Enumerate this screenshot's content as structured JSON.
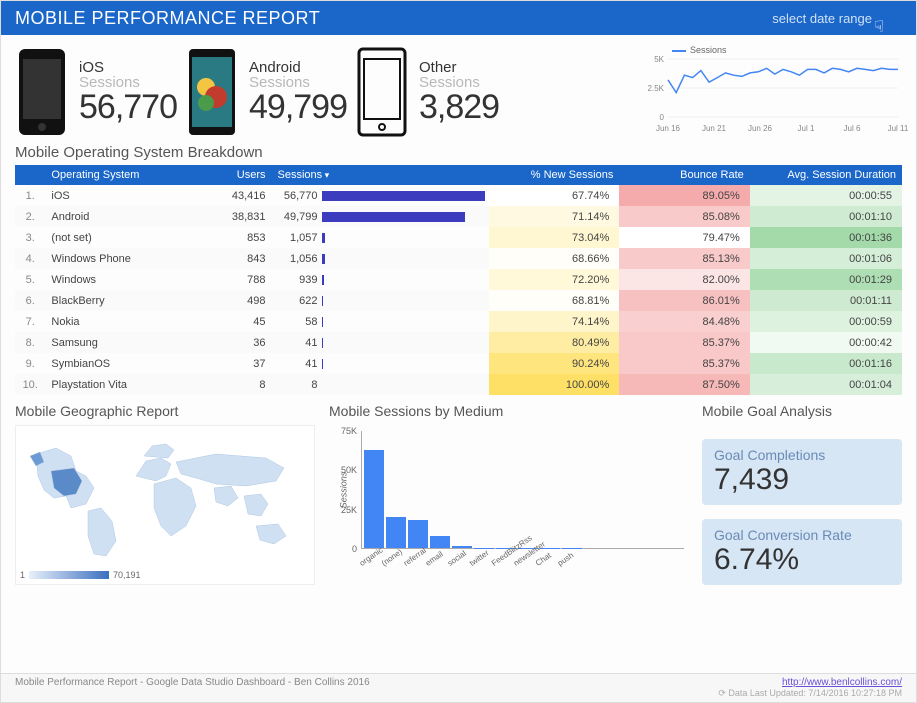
{
  "header": {
    "title": "MOBILE PERFORMANCE REPORT",
    "date_range_label": "select date range"
  },
  "kpis": [
    {
      "platform": "iOS",
      "sub": "Sessions",
      "value": "56,770"
    },
    {
      "platform": "Android",
      "sub": "Sessions",
      "value": "49,799"
    },
    {
      "platform": "Other",
      "sub": "Sessions",
      "value": "3,829"
    }
  ],
  "sparkline": {
    "legend": "Sessions",
    "y_ticks": [
      "5K",
      "2.5K",
      "0"
    ],
    "x_ticks": [
      "Jun 16",
      "Jun 21",
      "Jun 26",
      "Jul 1",
      "Jul 6",
      "Jul 11"
    ],
    "points": [
      3200,
      2100,
      3600,
      3400,
      4000,
      3000,
      3400,
      3800,
      3600,
      3500,
      3800,
      3900,
      4200,
      3700,
      4100,
      3900,
      3600,
      4100,
      4100,
      3800,
      4200,
      4100,
      3900,
      4200,
      4100,
      4000,
      4200,
      4100,
      4100
    ],
    "ylim": [
      0,
      5000
    ],
    "color": "#4285f4"
  },
  "breakdown": {
    "title": "Mobile Operating System Breakdown",
    "columns": [
      "",
      "Operating System",
      "Users",
      "Sessions",
      "% New Sessions",
      "Bounce Rate",
      "Avg. Session Duration"
    ],
    "sessions_max": 56770,
    "cell_colors": {
      "new_sessions": {
        "low": "#ffffff",
        "high": "#ffe066"
      },
      "bounce_rate": {
        "low": "#ffffff",
        "high": "#f4a6a6"
      },
      "duration": {
        "low": "#ffffff",
        "high": "#9fd8a5"
      }
    },
    "rows": [
      {
        "n": "1.",
        "os": "iOS",
        "users": "43,416",
        "sessions": "56,770",
        "sessions_v": 56770,
        "pct_new": "67.74%",
        "pct_new_w": 0.0,
        "bounce": "89.05%",
        "bounce_w": 0.95,
        "dur": "00:00:55",
        "dur_w": 0.3
      },
      {
        "n": "2.",
        "os": "Android",
        "users": "38,831",
        "sessions": "49,799",
        "sessions_v": 49799,
        "pct_new": "71.14%",
        "pct_new_w": 0.2,
        "bounce": "85.08%",
        "bounce_w": 0.6,
        "dur": "00:01:10",
        "dur_w": 0.5
      },
      {
        "n": "3.",
        "os": "(not set)",
        "users": "853",
        "sessions": "1,057",
        "sessions_v": 1057,
        "pct_new": "73.04%",
        "pct_new_w": 0.3,
        "bounce": "79.47%",
        "bounce_w": 0.0,
        "dur": "00:01:36",
        "dur_w": 0.95
      },
      {
        "n": "4.",
        "os": "Windows Phone",
        "users": "843",
        "sessions": "1,056",
        "sessions_v": 1056,
        "pct_new": "68.66%",
        "pct_new_w": 0.05,
        "bounce": "85.13%",
        "bounce_w": 0.6,
        "dur": "00:01:06",
        "dur_w": 0.45
      },
      {
        "n": "5.",
        "os": "Windows",
        "users": "788",
        "sessions": "939",
        "sessions_v": 939,
        "pct_new": "72.20%",
        "pct_new_w": 0.25,
        "bounce": "82.00%",
        "bounce_w": 0.3,
        "dur": "00:01:29",
        "dur_w": 0.85
      },
      {
        "n": "6.",
        "os": "BlackBerry",
        "users": "498",
        "sessions": "622",
        "sessions_v": 622,
        "pct_new": "68.81%",
        "pct_new_w": 0.05,
        "bounce": "86.01%",
        "bounce_w": 0.7,
        "dur": "00:01:11",
        "dur_w": 0.52
      },
      {
        "n": "7.",
        "os": "Nokia",
        "users": "45",
        "sessions": "58",
        "sessions_v": 58,
        "pct_new": "74.14%",
        "pct_new_w": 0.35,
        "bounce": "84.48%",
        "bounce_w": 0.55,
        "dur": "00:00:59",
        "dur_w": 0.35
      },
      {
        "n": "8.",
        "os": "Samsung",
        "users": "36",
        "sessions": "41",
        "sessions_v": 41,
        "pct_new": "80.49%",
        "pct_new_w": 0.6,
        "bounce": "85.37%",
        "bounce_w": 0.62,
        "dur": "00:00:42",
        "dur_w": 0.15
      },
      {
        "n": "9.",
        "os": "SymbianOS",
        "users": "37",
        "sessions": "41",
        "sessions_v": 41,
        "pct_new": "90.24%",
        "pct_new_w": 0.85,
        "bounce": "85.37%",
        "bounce_w": 0.62,
        "dur": "00:01:16",
        "dur_w": 0.58
      },
      {
        "n": "10.",
        "os": "Playstation Vita",
        "users": "8",
        "sessions": "8",
        "sessions_v": 8,
        "pct_new": "100.00%",
        "pct_new_w": 1.0,
        "bounce": "87.50%",
        "bounce_w": 0.8,
        "dur": "00:01:04",
        "dur_w": 0.42
      }
    ]
  },
  "geo": {
    "title": "Mobile Geographic Report",
    "scale_min": "1",
    "scale_max": "70,191",
    "map_color_low": "#e8f0fb",
    "map_color_high": "#3b6fbf"
  },
  "medium_chart": {
    "title": "Mobile Sessions by Medium",
    "type": "bar",
    "ylabel": "Sessions",
    "yticks": [
      "75K",
      "50K",
      "25K",
      "0"
    ],
    "ylim_max": 75000,
    "bar_color": "#4285f4",
    "categories": [
      "organic",
      "(none)",
      "referral",
      "email",
      "social",
      "twitter",
      "FeedBlitzRss",
      "newsletter",
      "Chat",
      "push"
    ],
    "values": [
      63000,
      20000,
      18000,
      8000,
      1200,
      300,
      200,
      150,
      100,
      80
    ]
  },
  "goals": {
    "title": "Mobile Goal Analysis",
    "cards": [
      {
        "label": "Goal Completions",
        "value": "7,439"
      },
      {
        "label": "Goal Conversion Rate",
        "value": "6.74%"
      }
    ],
    "card_bg": "#d6e6f5"
  },
  "footer": {
    "credit": "Mobile Performance Report - Google Data Studio Dashboard - Ben Collins 2016",
    "link": "http://www.benlcollins.com/",
    "updated": "Data Last Updated: 7/14/2016 10:27:18 PM"
  }
}
